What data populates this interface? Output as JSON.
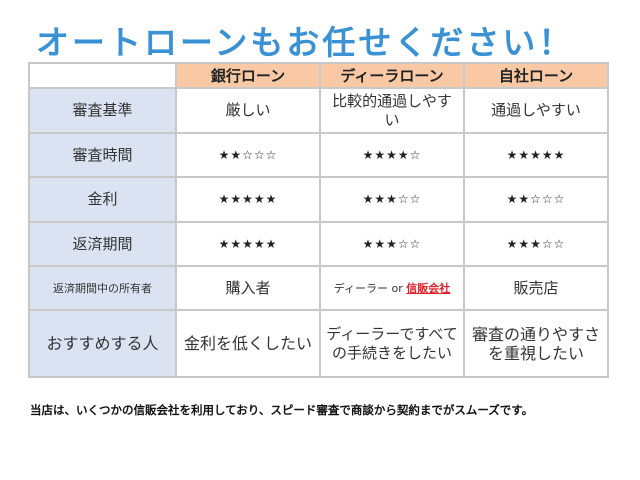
{
  "title": "オートローンもお任せください！",
  "table": {
    "headers": [
      "",
      "銀行ローン",
      "ディーラローン",
      "自社ローン"
    ],
    "rows": [
      {
        "label": "審査基準",
        "cells": [
          "厳しい",
          "比較的通過しやすい",
          "通過しやすい"
        ]
      },
      {
        "label": "審査時間",
        "cells": [
          "★★☆☆☆",
          "★★★★☆",
          "★★★★★"
        ]
      },
      {
        "label": "金利",
        "cells": [
          "★★★★★",
          "★★★☆☆",
          "★★☆☆☆"
        ]
      },
      {
        "label": "返済期間",
        "cells": [
          "★★★★★",
          "★★★☆☆",
          "★★★☆☆"
        ]
      },
      {
        "label": "返済期間中の所有者",
        "cells": [
          "購入者",
          {
            "prefix": "ディーラー or ",
            "link": "信販会社"
          },
          "販売店"
        ]
      },
      {
        "label": "おすすめする人",
        "cells": [
          "金利を低くしたい",
          "ディーラーですべての手続きをしたい",
          "審査の通りやすさを重視したい"
        ]
      }
    ]
  },
  "note": "当店は、いくつかの信販会社を利用しており、スピード審査で商談から契約までがスムーズです。",
  "colors": {
    "title": "#3a92d4",
    "header_bg": "#f9c9a6",
    "row_header_bg": "#dbe3f2",
    "link": "#e0202a"
  }
}
